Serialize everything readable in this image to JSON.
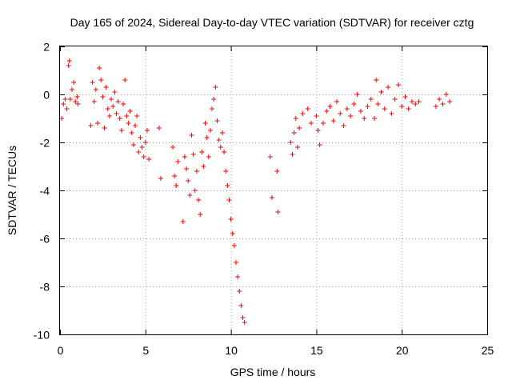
{
  "chart_data": {
    "type": "scatter",
    "title": "Day 165 of 2024, Sidereal Day-to-day VTEC variation (SDTVAR) for receiver cztg",
    "xlabel": "GPS time / hours",
    "ylabel": "SDTVAR / TECUs",
    "xlim": [
      0,
      25
    ],
    "ylim": [
      -10,
      2
    ],
    "x_ticks": [
      "0",
      "5",
      "10",
      "15",
      "20",
      "25"
    ],
    "y_ticks": [
      "2",
      "0",
      "-2",
      "-4",
      "-6",
      "-8",
      "-10"
    ],
    "grid": true,
    "marker": "plus",
    "color": "#ff0000",
    "series": [
      {
        "name": "SDTVAR",
        "x": [
          0.1,
          0.2,
          0.3,
          0.4,
          0.5,
          0.55,
          0.6,
          0.7,
          0.8,
          0.9,
          1.0,
          1.05,
          1.8,
          1.9,
          2.0,
          2.1,
          2.2,
          2.3,
          2.4,
          2.5,
          2.6,
          2.7,
          2.8,
          2.9,
          3.0,
          3.1,
          3.2,
          3.3,
          3.4,
          3.5,
          3.6,
          3.7,
          3.8,
          3.9,
          4.0,
          4.1,
          4.2,
          4.3,
          4.4,
          4.5,
          4.6,
          4.7,
          4.8,
          4.9,
          5.0,
          5.1,
          5.2,
          5.8,
          5.9,
          6.6,
          6.7,
          6.8,
          6.9,
          7.2,
          7.3,
          7.4,
          7.5,
          7.6,
          7.7,
          7.8,
          7.9,
          8.0,
          8.1,
          8.2,
          8.3,
          8.4,
          8.5,
          8.6,
          8.7,
          8.8,
          8.9,
          9.0,
          9.1,
          9.2,
          9.3,
          9.4,
          9.5,
          9.6,
          9.7,
          9.8,
          9.9,
          10.0,
          10.1,
          10.2,
          10.3,
          10.4,
          10.5,
          10.6,
          10.7,
          10.8,
          12.3,
          12.4,
          12.7,
          12.75,
          13.5,
          13.6,
          13.7,
          13.8,
          13.9,
          14.0,
          14.2,
          14.5,
          14.7,
          15.0,
          15.1,
          15.2,
          15.4,
          15.6,
          15.8,
          16.0,
          16.2,
          16.4,
          16.6,
          16.8,
          17.0,
          17.2,
          17.4,
          17.6,
          17.8,
          18.0,
          18.2,
          18.4,
          18.5,
          18.6,
          18.8,
          19.0,
          19.2,
          19.4,
          19.6,
          19.8,
          20.0,
          20.2,
          20.4,
          20.6,
          20.8,
          21.0,
          22.0,
          22.2,
          22.4,
          22.6,
          22.8
        ],
        "y": [
          -1.0,
          -0.4,
          -0.2,
          -0.6,
          1.2,
          1.4,
          -0.2,
          0.2,
          0.5,
          -0.3,
          -0.1,
          -0.4,
          -1.3,
          0.5,
          -0.3,
          0.2,
          -1.2,
          1.1,
          0.6,
          -0.1,
          -1.4,
          0.3,
          -0.6,
          -0.9,
          -0.2,
          -0.5,
          0.1,
          -0.8,
          -0.3,
          -1.0,
          -1.5,
          -0.4,
          0.6,
          -0.9,
          -1.2,
          -0.7,
          -1.6,
          -2.1,
          -1.3,
          -0.9,
          -2.4,
          -1.8,
          -2.2,
          -2.6,
          -2.0,
          -1.5,
          -2.7,
          -1.4,
          -3.5,
          -2.2,
          -3.4,
          -3.8,
          -2.8,
          -5.3,
          -2.6,
          -3.1,
          -3.6,
          -4.2,
          -1.7,
          -2.5,
          -4.0,
          -3.2,
          -4.4,
          -5.0,
          -2.4,
          -3.0,
          -1.2,
          -1.8,
          -2.6,
          -1.5,
          -0.6,
          -0.2,
          0.3,
          -1.1,
          -1.9,
          -2.2,
          -1.6,
          -2.4,
          -3.2,
          -3.8,
          -4.4,
          -5.2,
          -5.8,
          -6.3,
          -7.0,
          -7.6,
          -8.2,
          -8.8,
          -9.3,
          -9.5,
          -2.6,
          -4.3,
          -3.2,
          -4.9,
          -2.0,
          -2.5,
          -1.6,
          -1.0,
          -2.2,
          -1.4,
          -0.8,
          -0.6,
          -1.2,
          -0.9,
          -1.5,
          -2.1,
          -1.2,
          -0.7,
          -0.5,
          -1.1,
          -0.3,
          -0.8,
          -1.3,
          -0.6,
          -0.9,
          -0.4,
          0.0,
          -0.7,
          -1.0,
          -0.5,
          -0.2,
          -1.0,
          0.6,
          -0.4,
          0.1,
          -0.6,
          0.3,
          -0.8,
          -0.2,
          0.4,
          -0.5,
          -0.1,
          -0.6,
          -0.3,
          -0.4,
          -0.3,
          -0.5,
          -0.2,
          -0.4,
          0.0,
          -0.3
        ]
      }
    ]
  }
}
